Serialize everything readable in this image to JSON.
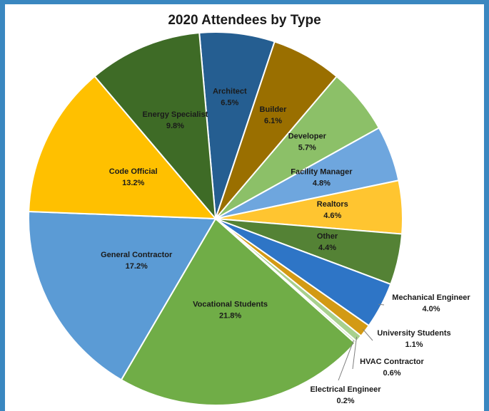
{
  "chart_data": {
    "type": "pie",
    "title": "2020 Attendees by Type",
    "labels": [
      "Architect",
      "Builder",
      "Developer",
      "Facility Manager",
      "Realtors",
      "Other",
      "Mechanical Engineer",
      "University Students",
      "HVAC Contractor",
      "Electrical Engineer",
      "Vocational Students",
      "General Contractor",
      "Code Official",
      "Energy Specialist"
    ],
    "values": [
      6.5,
      6.1,
      5.7,
      4.8,
      4.6,
      4.4,
      4.0,
      1.1,
      0.6,
      0.2,
      21.8,
      17.2,
      13.2,
      9.8
    ],
    "value_labels": [
      "6.5%",
      "6.1%",
      "5.7%",
      "4.8%",
      "4.6%",
      "4.4%",
      "4.0%",
      "1.1%",
      "0.6%",
      "0.2%",
      "21.8%",
      "17.2%",
      "13.2%",
      "9.8%"
    ],
    "colors": [
      "#255e91",
      "#9a6f00",
      "#8cc068",
      "#6ea6de",
      "#ffc530",
      "#548235",
      "#2e75c6",
      "#d39a14",
      "#a8d08d",
      "#d3e7c5",
      "#70ad47",
      "#5b9bd5",
      "#ffc000",
      "#3e6b26"
    ],
    "start_angle_deg": -5,
    "direction": "clockwise"
  }
}
